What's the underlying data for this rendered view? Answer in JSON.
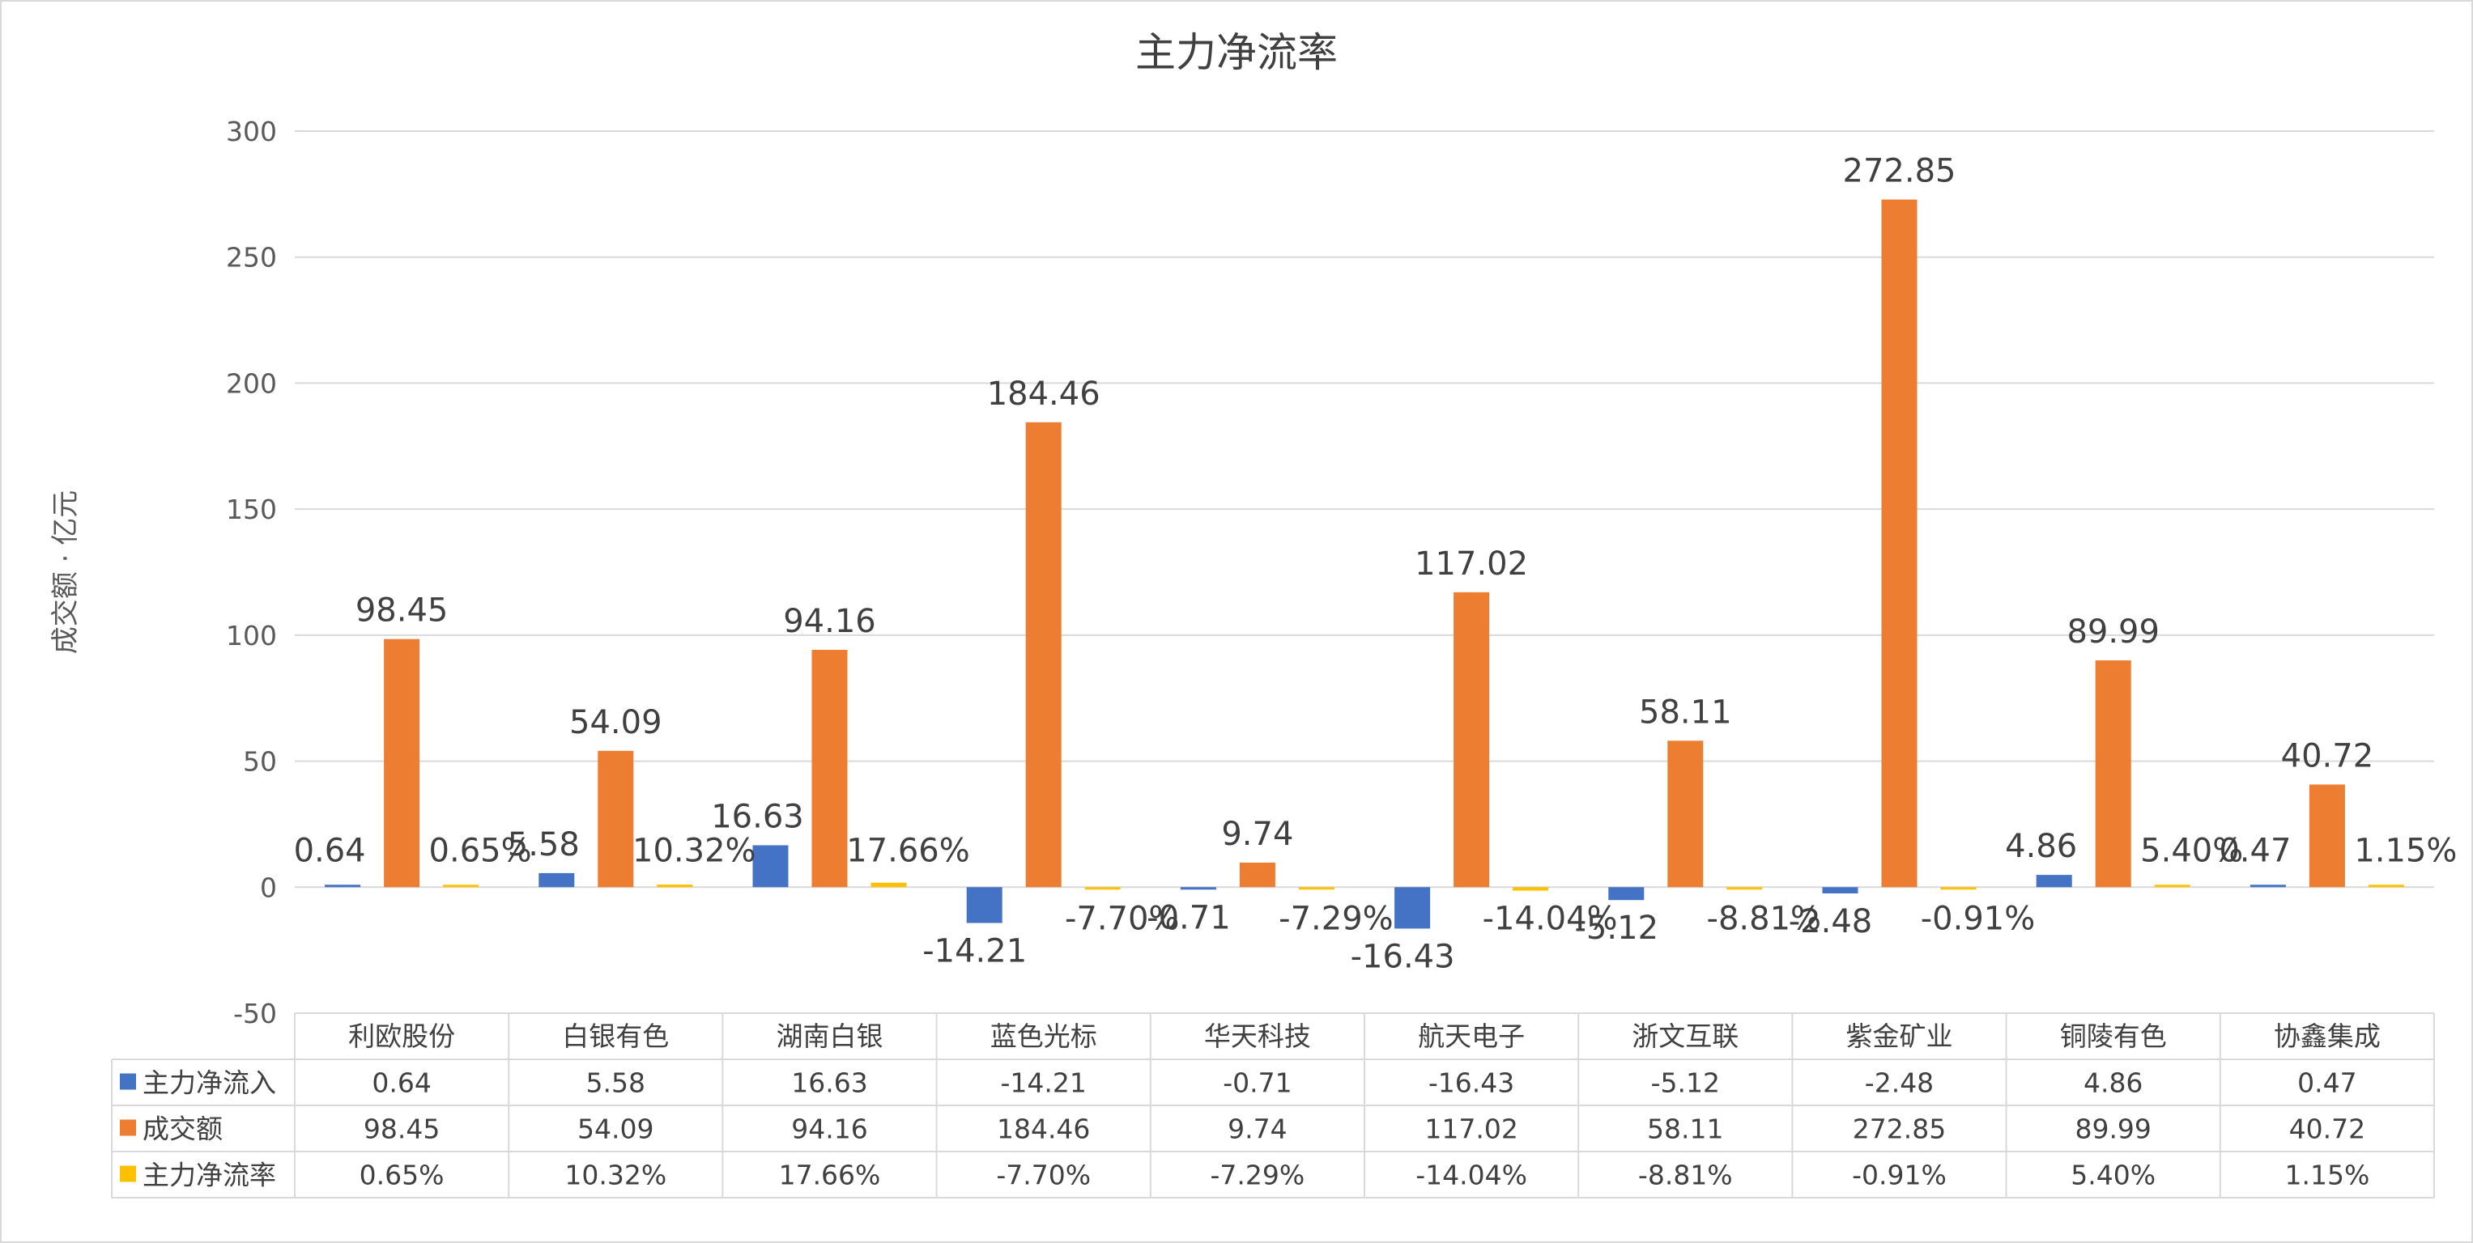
{
  "chart_data": {
    "type": "bar",
    "title": "主力净流率",
    "ylabel": "成交额 · 亿元",
    "xlabel": "",
    "ylim": [
      -50,
      300
    ],
    "yticks": [
      -50,
      0,
      50,
      100,
      150,
      200,
      250,
      300
    ],
    "grid": true,
    "legend_placement": "data-table",
    "categories": [
      "利欧股份",
      "白银有色",
      "湖南白银",
      "蓝色光标",
      "华天科技",
      "航天电子",
      "浙文互联",
      "紫金矿业",
      "铜陵有色",
      "协鑫集成"
    ],
    "series": [
      {
        "name": "主力净流入",
        "color": "#4472C4",
        "values": [
          0.64,
          5.58,
          16.63,
          -14.21,
          -0.71,
          -16.43,
          -5.12,
          -2.48,
          4.86,
          0.47
        ],
        "labels": [
          "0.64",
          "5.58",
          "16.63",
          "-14.21",
          "-0.71",
          "-16.43",
          "-5.12",
          "-2.48",
          "4.86",
          "0.47"
        ]
      },
      {
        "name": "成交额",
        "color": "#ED7D31",
        "values": [
          98.45,
          54.09,
          94.16,
          184.46,
          9.74,
          117.02,
          58.11,
          272.85,
          89.99,
          40.72
        ],
        "labels": [
          "98.45",
          "54.09",
          "94.16",
          "184.46",
          "9.74",
          "117.02",
          "58.11",
          "272.85",
          "89.99",
          "40.72"
        ]
      },
      {
        "name": "主力净流率",
        "color": "#FFC000",
        "values": [
          0.65,
          10.32,
          17.66,
          -7.7,
          -7.29,
          -14.04,
          -8.81,
          -0.91,
          5.4,
          1.15
        ],
        "labels": [
          "0.65%",
          "10.32%",
          "17.66%",
          "-7.70%",
          "-7.29%",
          "-14.04%",
          "-8.81%",
          "-0.91%",
          "5.40%",
          "1.15%"
        ],
        "unit": "%"
      }
    ]
  }
}
